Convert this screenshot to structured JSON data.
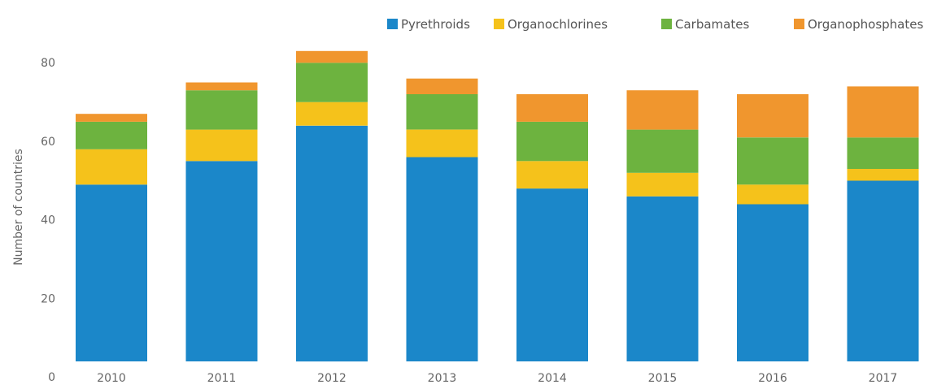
{
  "chart_data": {
    "type": "bar",
    "stacked": true,
    "categories": [
      "2010",
      "2011",
      "2012",
      "2013",
      "2014",
      "2015",
      "2016",
      "2017"
    ],
    "series": [
      {
        "name": "Pyrethroids",
        "color": "#1b87c9",
        "values": [
          45,
          51,
          60,
          52,
          44,
          42,
          40,
          46
        ]
      },
      {
        "name": "Organochlorines",
        "color": "#f5c21b",
        "values": [
          9,
          8,
          6,
          7,
          7,
          6,
          5,
          3
        ]
      },
      {
        "name": "Carbamates",
        "color": "#6db33f",
        "values": [
          7,
          10,
          10,
          9,
          10,
          11,
          12,
          8
        ]
      },
      {
        "name": "Organophosphates",
        "color": "#f0962e",
        "values": [
          2,
          2,
          3,
          4,
          7,
          10,
          11,
          13
        ]
      }
    ],
    "xlabel": "",
    "ylabel": "Number of countries",
    "yticks": [
      "0",
      "20",
      "40",
      "60",
      "80"
    ],
    "ylim": [
      0,
      80
    ],
    "grid": false,
    "legend_position": "top-right"
  }
}
